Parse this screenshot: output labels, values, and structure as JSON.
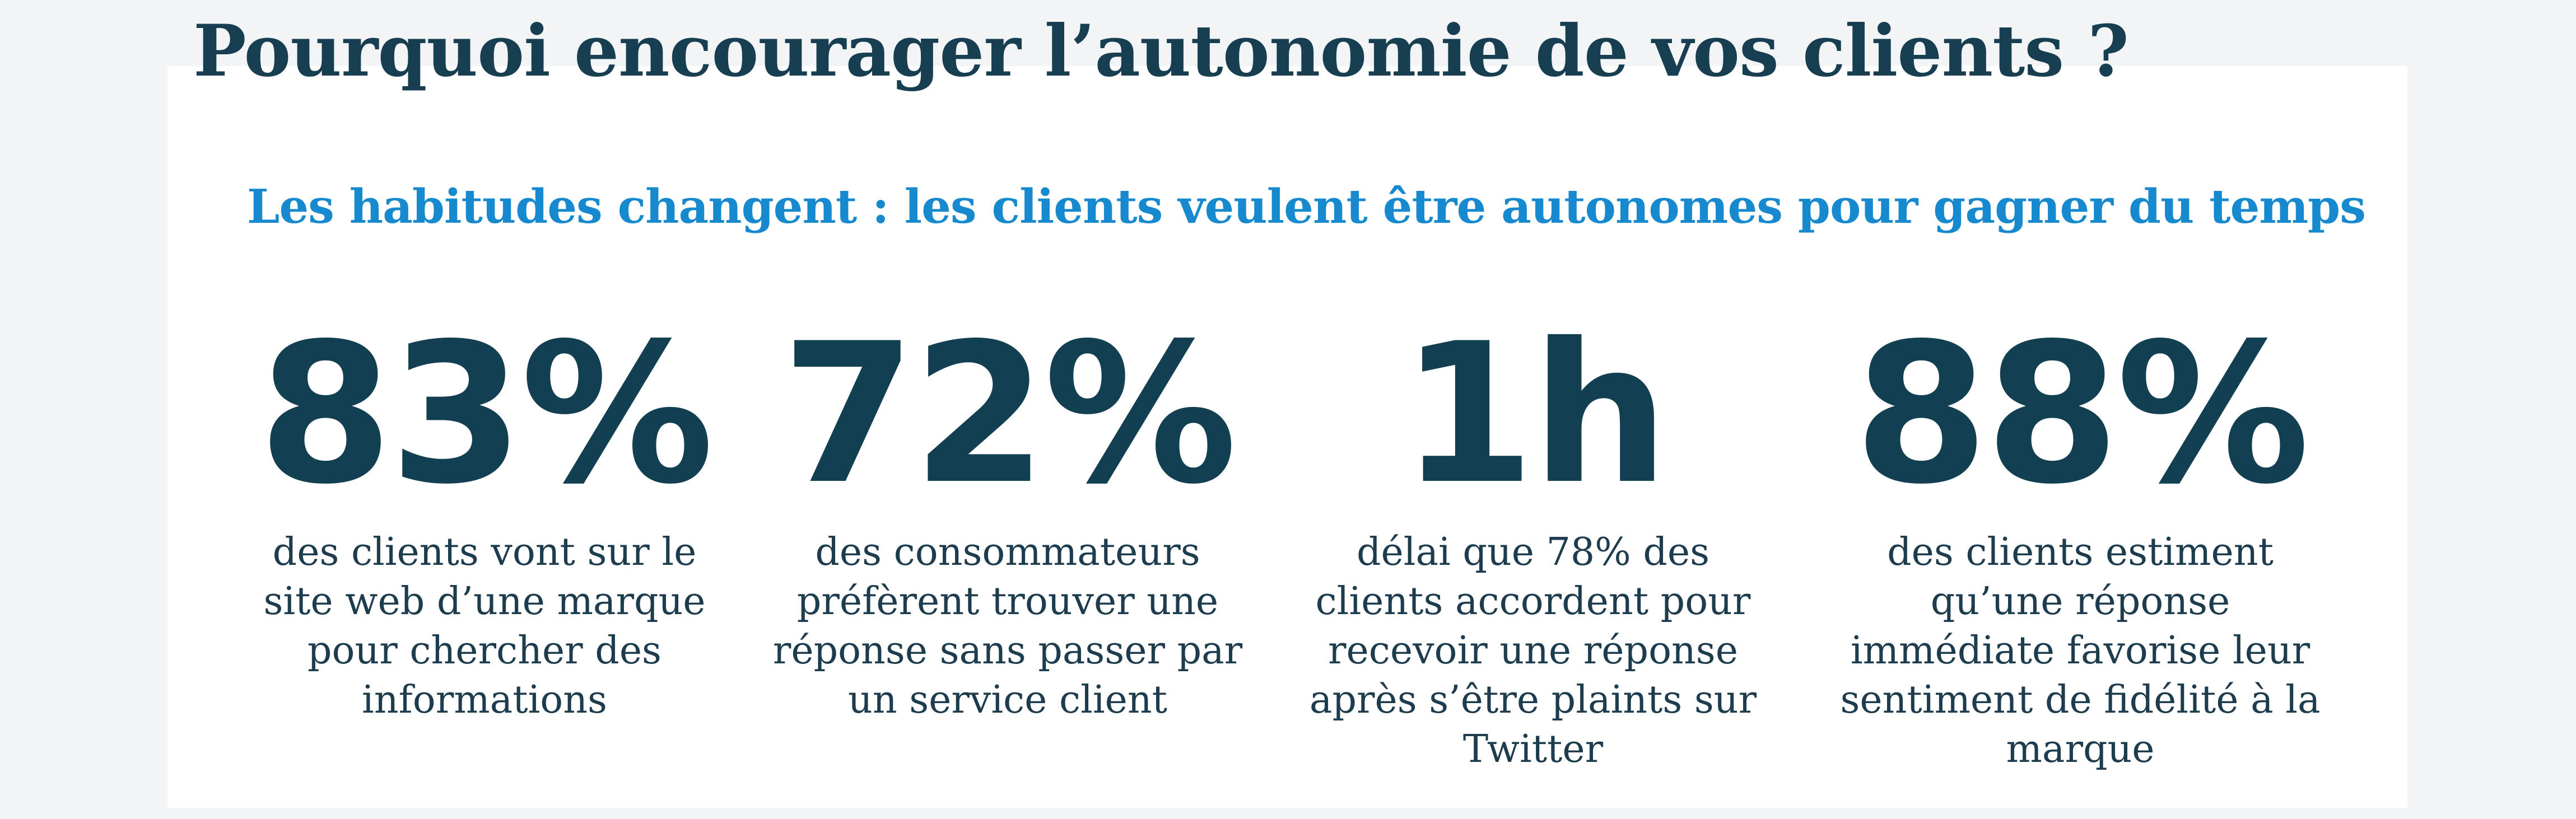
{
  "title": "Pourquoi encourager l’autonomie de vos clients ?",
  "subtitle": "Les habitudes changent : les clients veulent être autonomes pour gagner du temps",
  "stats": [
    {
      "value": "83%",
      "description": "des clients vont sur le site web d’une marque pour chercher des informations"
    },
    {
      "value": "72%",
      "description": "des consommateurs préfèrent trouver une réponse sans passer par un service client"
    },
    {
      "value": "1h",
      "description": "délai que 78% des clients accordent pour recevoir une réponse après s’être plaints sur Twitter"
    },
    {
      "value": "88%",
      "description": "des clients estiment qu’une réponse immédiate favorise leur sentiment de fidélité à la marque"
    }
  ],
  "colors": {
    "background": "#f3f4f6",
    "card": "#ffffff",
    "title": "#173f51",
    "subtitle": "#1789cf",
    "stat_value": "#133f52",
    "stat_text": "#1d3c4d"
  }
}
